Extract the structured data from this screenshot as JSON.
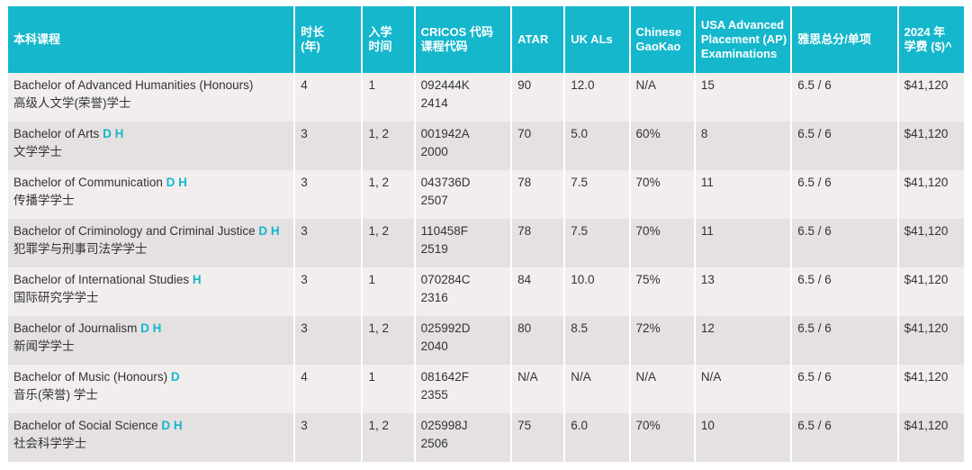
{
  "headers": {
    "course": "本科课程",
    "duration": [
      "时长",
      "(年)"
    ],
    "intake": [
      "入学",
      "时间"
    ],
    "cricos": [
      "CRICOS 代码",
      "课程代码"
    ],
    "atar": "ATAR",
    "ukals": "UK ALs",
    "gaokao": [
      "Chinese",
      "GaoKao"
    ],
    "ap": [
      "USA Advanced",
      "Placement (AP)",
      "Examinations"
    ],
    "ielts": "雅思总分/单项",
    "fee": [
      "2024 年",
      "学费 ($)^"
    ]
  },
  "rows": [
    {
      "name_en": "Bachelor of Advanced Humanities (Honours)",
      "flags": "",
      "name_cn": "高级人文学(荣誉)学士",
      "duration": "4",
      "intake": "1",
      "cricos": "092444K",
      "code": "2414",
      "atar": "90",
      "ukals": "12.0",
      "gaokao": "N/A",
      "ap": "15",
      "ielts": "6.5 / 6",
      "fee": "$41,120"
    },
    {
      "name_en": "Bachelor of Arts",
      "flags": "D H",
      "name_cn": "文学学士",
      "duration": "3",
      "intake": "1, 2",
      "cricos": "001942A",
      "code": "2000",
      "atar": "70",
      "ukals": "5.0",
      "gaokao": "60%",
      "ap": "8",
      "ielts": "6.5 / 6",
      "fee": "$41,120"
    },
    {
      "name_en": "Bachelor of Communication",
      "flags": "D H",
      "name_cn": "传播学学士",
      "duration": "3",
      "intake": "1, 2",
      "cricos": "043736D",
      "code": "2507",
      "atar": "78",
      "ukals": "7.5",
      "gaokao": "70%",
      "ap": "11",
      "ielts": "6.5 / 6",
      "fee": "$41,120"
    },
    {
      "name_en": "Bachelor of Criminology and Criminal Justice",
      "flags": "D H",
      "name_cn": "犯罪学与刑事司法学学士",
      "duration": "3",
      "intake": "1, 2",
      "cricos": "110458F",
      "code": "2519",
      "atar": "78",
      "ukals": "7.5",
      "gaokao": "70%",
      "ap": "11",
      "ielts": "6.5 / 6",
      "fee": "$41,120"
    },
    {
      "name_en": "Bachelor of International Studies",
      "flags": "H",
      "name_cn": "国际研究学学士",
      "duration": "3",
      "intake": "1",
      "cricos": "070284C",
      "code": "2316",
      "atar": "84",
      "ukals": "10.0",
      "gaokao": "75%",
      "ap": "13",
      "ielts": "6.5 / 6",
      "fee": "$41,120"
    },
    {
      "name_en": "Bachelor of Journalism",
      "flags": "D H",
      "name_cn": "新闻学学士",
      "duration": "3",
      "intake": "1, 2",
      "cricos": "025992D",
      "code": "2040",
      "atar": "80",
      "ukals": "8.5",
      "gaokao": "72%",
      "ap": "12",
      "ielts": "6.5 / 6",
      "fee": "$41,120"
    },
    {
      "name_en": "Bachelor of Music (Honours)",
      "flags": "D",
      "name_cn": "音乐(荣誉) 学士",
      "duration": "4",
      "intake": "1",
      "cricos": "081642F",
      "code": "2355",
      "atar": "N/A",
      "ukals": "N/A",
      "gaokao": "N/A",
      "ap": "N/A",
      "ielts": "6.5 / 6",
      "fee": "$41,120"
    },
    {
      "name_en": "Bachelor of Social Science",
      "flags": "D H",
      "name_cn": "社会科学学士",
      "duration": "3",
      "intake": "1, 2",
      "cricos": "025998J",
      "code": "2506",
      "atar": "75",
      "ukals": "6.0",
      "gaokao": "70%",
      "ap": "10",
      "ielts": "6.5 / 6",
      "fee": "$41,120"
    }
  ]
}
